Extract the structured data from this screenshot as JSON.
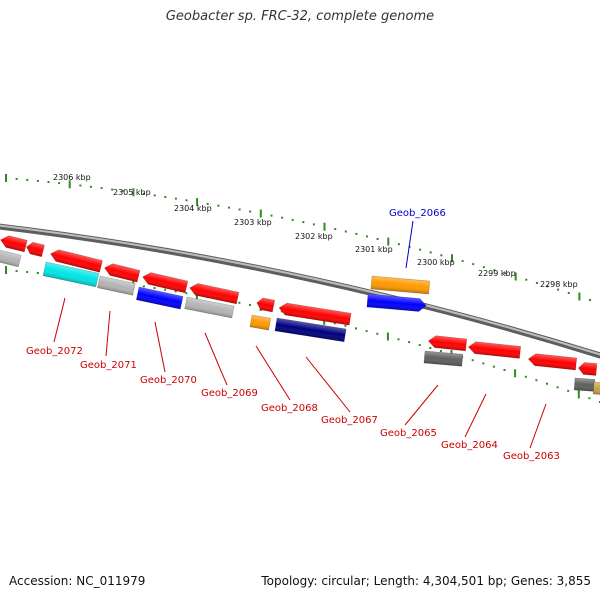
{
  "title": "Geobacter sp. FRC-32, complete genome",
  "footer": {
    "accession": "Accession: NC_011979",
    "summary": "Topology: circular; Length: 4,304,501 bp; Genes: 3,855"
  },
  "colors": {
    "tick": "#2e8b1e",
    "label_red": "#cc0000",
    "label_blue": "#0000cc",
    "backbone": "#808080"
  },
  "ruler": {
    "unit": "kbp",
    "labels": [
      "2306 kbp",
      "2305 kbp",
      "2304 kbp",
      "2303 kbp",
      "2302 kbp",
      "2301 kbp",
      "2300 kbp",
      "2299 kbp",
      "2298 kbp"
    ]
  },
  "genes": [
    {
      "label": "Geob_2072",
      "color": "#00e5e5"
    },
    {
      "label": "Geob_2071",
      "color": "#b4b4b4"
    },
    {
      "label": "Geob_2070",
      "color": "#0000ff"
    },
    {
      "label": "Geob_2069",
      "color": "#b4b4b4"
    },
    {
      "label": "Geob_2068",
      "color": "#ff9900"
    },
    {
      "label": "Geob_2067",
      "color": "#000080"
    },
    {
      "label": "Geob_2066",
      "color": "#ff9900"
    },
    {
      "label": "Geob_2065",
      "color": "#606060"
    },
    {
      "label": "Geob_2064",
      "color": "#ff0000"
    },
    {
      "label": "Geob_2063",
      "color": "#ff0000"
    }
  ]
}
